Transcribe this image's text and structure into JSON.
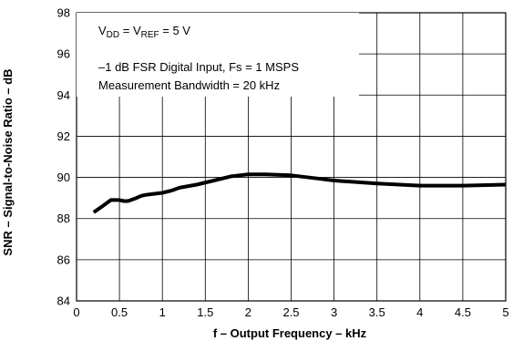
{
  "chart_data": {
    "type": "line",
    "xlabel": "f – Output Frequency – kHz",
    "ylabel": "SNR – Signal-to-Noise Ratio – dB",
    "xlim": [
      0,
      5
    ],
    "ylim": [
      84,
      98
    ],
    "xticks": [
      0,
      0.5,
      1,
      1.5,
      2,
      2.5,
      3,
      3.5,
      4,
      4.5,
      5
    ],
    "xtick_labels": [
      "0",
      "0.5",
      "1",
      "1.5",
      "2",
      "2.5",
      "3",
      "3.5",
      "4",
      "4.5",
      "5"
    ],
    "yticks": [
      84,
      86,
      88,
      90,
      92,
      94,
      96,
      98
    ],
    "ytick_labels": [
      "84",
      "86",
      "88",
      "90",
      "92",
      "94",
      "96",
      "98"
    ],
    "grid": true,
    "annotations": {
      "condition1": {
        "v_main": "V",
        "v_sub": "DD",
        "eq1": " = V",
        "ref_sub": "REF",
        "eq2": " = 5 V"
      },
      "condition2": "–1 dB FSR Digital Input, Fs = 1 MSPS",
      "condition3": "Measurement Bandwidth = 20 kHz"
    },
    "series": [
      {
        "color": "#000000",
        "x": [
          0.2,
          0.3,
          0.4,
          0.5,
          0.55,
          0.6,
          0.7,
          0.75,
          0.8,
          0.9,
          1.0,
          1.1,
          1.2,
          1.4,
          1.6,
          1.8,
          2.0,
          2.2,
          2.5,
          2.8,
          3.0,
          3.5,
          4.0,
          4.5,
          5.0
        ],
        "y": [
          88.3,
          88.6,
          88.9,
          88.9,
          88.85,
          88.85,
          89.0,
          89.1,
          89.15,
          89.2,
          89.25,
          89.35,
          89.5,
          89.65,
          89.85,
          90.05,
          90.15,
          90.15,
          90.1,
          89.95,
          89.85,
          89.7,
          89.6,
          89.6,
          89.65
        ]
      }
    ]
  }
}
